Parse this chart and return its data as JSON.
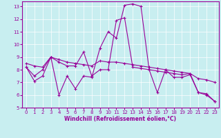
{
  "background_color": "#c8eef0",
  "grid_color": "#ffffff",
  "line_color": "#990099",
  "xlabel": "Windchill (Refroidissement éolien,°C)",
  "xlim": [
    -0.5,
    23.5
  ],
  "ylim": [
    5,
    13.4
  ],
  "yticks": [
    5,
    6,
    7,
    8,
    9,
    10,
    11,
    12,
    13
  ],
  "xticks": [
    0,
    1,
    2,
    3,
    4,
    5,
    6,
    7,
    8,
    9,
    10,
    11,
    12,
    13,
    14,
    15,
    16,
    17,
    18,
    19,
    20,
    21,
    22,
    23
  ],
  "series1_x": [
    0,
    1,
    2,
    3,
    4,
    5,
    6,
    7,
    8,
    9,
    10,
    11,
    12,
    13,
    14,
    15,
    16,
    17,
    18,
    19,
    20,
    21,
    22,
    23
  ],
  "series1_y": [
    8.2,
    7.1,
    7.5,
    9.0,
    6.0,
    7.5,
    6.5,
    7.5,
    7.4,
    9.7,
    11.0,
    10.5,
    13.1,
    13.2,
    13.0,
    8.0,
    6.2,
    8.0,
    7.4,
    7.4,
    7.6,
    6.2,
    6.0,
    5.5
  ],
  "series2_x": [
    0,
    1,
    2,
    3,
    4,
    5,
    6,
    7,
    8,
    9,
    10,
    11,
    12,
    13,
    14,
    15,
    16,
    17,
    18,
    19,
    20,
    21,
    22,
    23
  ],
  "series2_y": [
    8.2,
    7.5,
    8.0,
    9.0,
    8.6,
    8.3,
    8.3,
    9.4,
    7.5,
    8.0,
    8.0,
    11.9,
    12.1,
    8.2,
    8.1,
    8.0,
    7.9,
    7.8,
    7.7,
    7.6,
    7.7,
    6.2,
    6.1,
    5.5
  ],
  "series3_x": [
    0,
    1,
    2,
    3,
    4,
    5,
    6,
    7,
    8,
    9,
    10,
    11,
    12,
    13,
    14,
    15,
    16,
    17,
    18,
    19,
    20,
    21,
    22,
    23
  ],
  "series3_y": [
    8.5,
    8.3,
    8.2,
    9.0,
    8.8,
    8.6,
    8.5,
    8.4,
    8.3,
    8.7,
    8.6,
    8.6,
    8.5,
    8.4,
    8.3,
    8.2,
    8.1,
    8.0,
    7.9,
    7.8,
    7.7,
    7.3,
    7.2,
    7.0
  ],
  "xlabel_fontsize": 5.5,
  "tick_fontsize": 5,
  "linewidth": 0.8,
  "markersize": 3
}
